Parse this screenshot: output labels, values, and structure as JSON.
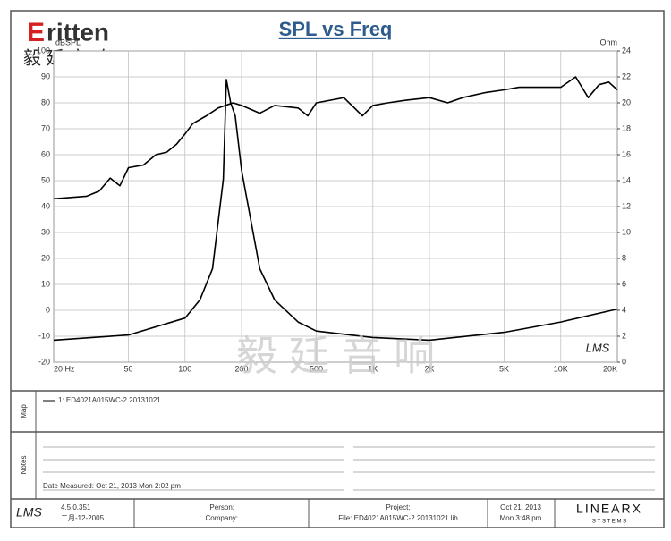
{
  "chart_data": {
    "type": "line",
    "title": "SPL vs Freq",
    "y_label": "dBSPL",
    "y2_label": "Ohm",
    "xlog": true,
    "grid": true,
    "xlim": [
      20,
      20000
    ],
    "xticks": [
      {
        "value": 20,
        "label": "20 Hz"
      },
      50,
      100,
      200,
      500,
      {
        "value": 1000,
        "label": "1K"
      },
      {
        "value": 2000,
        "label": "2K"
      },
      {
        "value": 5000,
        "label": "5K"
      },
      {
        "value": 10000,
        "label": "10K"
      },
      {
        "value": 20000,
        "label": "20K"
      }
    ],
    "ylim": [
      -20,
      100
    ],
    "yticks": [
      -20,
      -10,
      0,
      10,
      20,
      30,
      40,
      50,
      60,
      70,
      80,
      90,
      100
    ],
    "y2lim": [
      0,
      24
    ],
    "y2ticks": [
      0,
      2,
      4,
      6,
      8,
      10,
      12,
      14,
      16,
      18,
      20,
      22,
      24
    ],
    "series": [
      {
        "color": "#000000",
        "x": [
          20,
          30,
          35,
          40,
          45,
          50,
          60,
          70,
          80,
          90,
          100,
          110,
          130,
          150,
          180,
          200,
          250,
          300,
          400,
          450,
          500,
          700,
          880,
          1000,
          1200,
          1500,
          2000,
          2500,
          3000,
          4000,
          5000,
          6000,
          8000,
          10000,
          12000,
          14000,
          16000,
          18000,
          20000
        ],
        "values": [
          43,
          44,
          46,
          51,
          48,
          55,
          56,
          60,
          61,
          64,
          68,
          72,
          75,
          78,
          80,
          79,
          76,
          79,
          78,
          75,
          80,
          82,
          75,
          79,
          80,
          81,
          82,
          80,
          82,
          84,
          85,
          86,
          86,
          86,
          90,
          82,
          87,
          88,
          85
        ]
      },
      {
        "color": "#000000",
        "axis": "y2",
        "x": [
          20,
          50,
          100,
          120,
          140,
          160,
          166,
          175,
          185,
          200,
          250,
          300,
          400,
          500,
          1000,
          2000,
          5000,
          10000,
          20000
        ],
        "values": [
          1.7,
          2.1,
          3.4,
          4.8,
          7.2,
          14.1,
          21.8,
          20,
          19,
          14.8,
          7.2,
          4.8,
          3.1,
          2.4,
          1.9,
          1.7,
          2.3,
          3.1,
          4.1
        ]
      }
    ],
    "watermark": "LMS"
  },
  "header": {
    "logo_mark": "E",
    "logo_text": "ritten",
    "logo_chinese": "毅 廷 音 响",
    "watermark_chinese": "毅 廷 音 响"
  },
  "map": {
    "label": "Map",
    "entry": "1: ED4021A015WC-2  20131021"
  },
  "notes": {
    "label": "Notes",
    "date_measured": "Date Measured: Oct 21, 2013  Mon  2:02 pm"
  },
  "footer": {
    "logo": "LMS",
    "version": "4.5.0.351",
    "build_date": "二月-12-2005",
    "person": "Person:",
    "company": "Company:",
    "project": "Project:",
    "file": "File: ED4021A015WC-2 20131021.lib",
    "date": "Oct 21, 2013",
    "time": "Mon  3:48 pm",
    "brand": "LINEARX",
    "brand_sub": "S Y S T E M S"
  }
}
